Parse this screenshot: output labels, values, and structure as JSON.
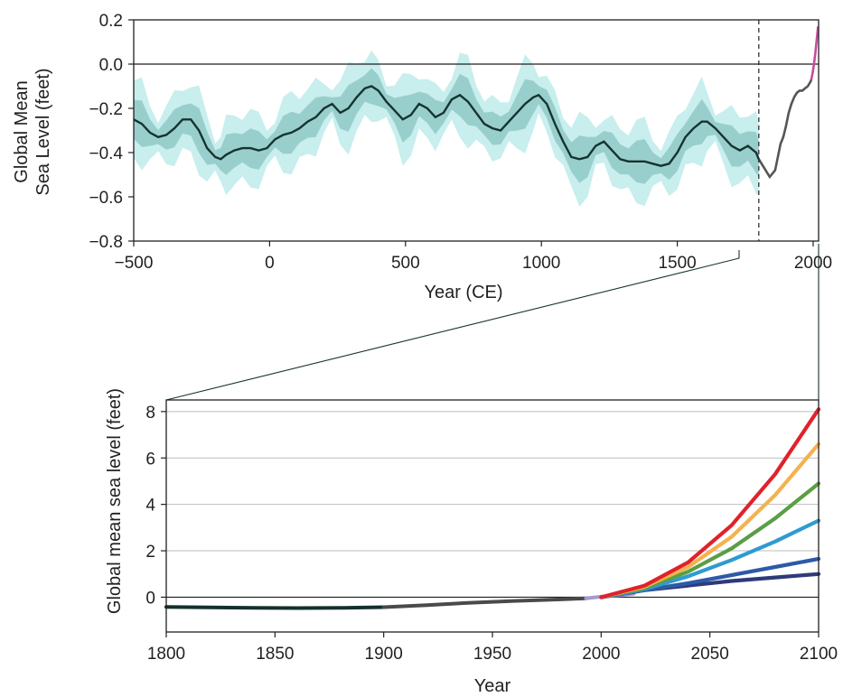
{
  "chart_data": [
    {
      "type": "line",
      "xlabel": "Year (CE)",
      "ylabel_lines": [
        "Global Mean",
        "Sea Level (feet)"
      ],
      "xlim": [
        -500,
        2020
      ],
      "ylim": [
        -0.8,
        0.2
      ],
      "xticks": [
        -500,
        0,
        500,
        1000,
        1500,
        2000
      ],
      "xtick_labels": [
        "−500",
        "0",
        "500",
        "1000",
        "1500",
        "2000"
      ],
      "yticks": [
        -0.8,
        -0.6,
        -0.4,
        -0.2,
        0.0,
        0.2
      ],
      "ytick_labels": [
        "−0.8",
        "−0.6",
        "−0.4",
        "−0.2",
        "0.0",
        "0.2"
      ],
      "grid": false,
      "zero_line": true,
      "marker_line_year": 1800,
      "colors": {
        "mean": "#163330",
        "band_inner": "#8fc9c6",
        "band_outer": "#c8eeee",
        "tide_gauge": "#555555",
        "satellite": "#c44d9e"
      },
      "series": [
        {
          "x": [
            -500,
            -470,
            -440,
            -410,
            -380,
            -350,
            -320,
            -290,
            -260,
            -230,
            -200,
            -180,
            -160,
            -130,
            -100,
            -70,
            -40,
            -10,
            20,
            50,
            80,
            110,
            140,
            170,
            200,
            230,
            260,
            290,
            320,
            350,
            375,
            400,
            430,
            460,
            490,
            520,
            550,
            580,
            610,
            640,
            670,
            700,
            730,
            760,
            790,
            820,
            850,
            880,
            910,
            940,
            970,
            990,
            1020,
            1050,
            1080,
            1110,
            1140,
            1170,
            1200,
            1230,
            1260,
            1290,
            1320,
            1350,
            1380,
            1410,
            1440,
            1470,
            1500,
            1530,
            1560,
            1590,
            1610,
            1640,
            1670,
            1700,
            1730,
            1760,
            1790,
            1800
          ],
          "y": [
            -0.25,
            -0.27,
            -0.31,
            -0.33,
            -0.32,
            -0.29,
            -0.25,
            -0.25,
            -0.3,
            -0.38,
            -0.42,
            -0.43,
            -0.41,
            -0.39,
            -0.38,
            -0.38,
            -0.39,
            -0.38,
            -0.34,
            -0.32,
            -0.31,
            -0.29,
            -0.26,
            -0.24,
            -0.2,
            -0.18,
            -0.22,
            -0.2,
            -0.15,
            -0.11,
            -0.1,
            -0.12,
            -0.17,
            -0.21,
            -0.25,
            -0.23,
            -0.18,
            -0.2,
            -0.24,
            -0.22,
            -0.16,
            -0.14,
            -0.17,
            -0.22,
            -0.27,
            -0.29,
            -0.3,
            -0.26,
            -0.22,
            -0.18,
            -0.15,
            -0.14,
            -0.18,
            -0.27,
            -0.35,
            -0.42,
            -0.43,
            -0.42,
            -0.37,
            -0.35,
            -0.39,
            -0.43,
            -0.44,
            -0.44,
            -0.44,
            -0.45,
            -0.46,
            -0.45,
            -0.4,
            -0.33,
            -0.29,
            -0.26,
            -0.26,
            -0.29,
            -0.33,
            -0.37,
            -0.39,
            -0.37,
            -0.4,
            -0.43
          ]
        },
        {
          "x": [
            1800,
            1820,
            1840,
            1860,
            1880,
            1890,
            1900,
            1910,
            1920,
            1930,
            1940,
            1950,
            1960,
            1970,
            1980,
            1990,
            1993
          ],
          "y": [
            -0.43,
            -0.47,
            -0.51,
            -0.48,
            -0.36,
            -0.33,
            -0.28,
            -0.22,
            -0.18,
            -0.15,
            -0.13,
            -0.12,
            -0.12,
            -0.11,
            -0.1,
            -0.08,
            -0.07
          ]
        },
        {
          "x": [
            1993,
            1998,
            2003,
            2008,
            2013,
            2018
          ],
          "y": [
            -0.07,
            -0.04,
            0.0,
            0.05,
            0.11,
            0.17
          ]
        }
      ]
    },
    {
      "type": "line",
      "xlabel": "Year",
      "ylabel": "Global mean sea level (feet)",
      "xlim": [
        1800,
        2100
      ],
      "ylim": [
        -1.5,
        8.5
      ],
      "xticks": [
        1800,
        1850,
        1900,
        1950,
        2000,
        2050,
        2100
      ],
      "yticks": [
        0,
        2,
        4,
        6,
        8
      ],
      "grid": true,
      "zero_line": true,
      "series": [
        {
          "color": "#13302e",
          "x": [
            1800,
            1820,
            1840,
            1860,
            1880,
            1900
          ],
          "y": [
            -0.42,
            -0.44,
            -0.46,
            -0.47,
            -0.46,
            -0.43
          ]
        },
        {
          "color": "#4a4a4a",
          "x": [
            1900,
            1920,
            1940,
            1960,
            1980,
            1993
          ],
          "y": [
            -0.43,
            -0.34,
            -0.24,
            -0.16,
            -0.1,
            -0.05
          ]
        },
        {
          "color": "#a898cf",
          "x": [
            1993,
            2000,
            2008,
            2015
          ],
          "y": [
            -0.05,
            0.02,
            0.08,
            0.15
          ]
        },
        {
          "color": "#2e3a7a",
          "x": [
            2000,
            2020,
            2040,
            2060,
            2080,
            2100
          ],
          "y": [
            0.0,
            0.3,
            0.5,
            0.7,
            0.85,
            1.0
          ]
        },
        {
          "color": "#2d5aa8",
          "x": [
            2000,
            2020,
            2040,
            2060,
            2080,
            2100
          ],
          "y": [
            0.0,
            0.3,
            0.6,
            0.95,
            1.3,
            1.65
          ]
        },
        {
          "color": "#2e9bd1",
          "x": [
            2000,
            2020,
            2040,
            2060,
            2080,
            2100
          ],
          "y": [
            0.0,
            0.35,
            0.9,
            1.6,
            2.4,
            3.3
          ]
        },
        {
          "color": "#5a9e45",
          "x": [
            2000,
            2020,
            2040,
            2060,
            2080,
            2100
          ],
          "y": [
            0.0,
            0.4,
            1.1,
            2.1,
            3.4,
            4.9
          ]
        },
        {
          "color": "#f4b24e",
          "x": [
            2000,
            2020,
            2040,
            2060,
            2080,
            2100
          ],
          "y": [
            0.0,
            0.45,
            1.3,
            2.6,
            4.4,
            6.6
          ]
        },
        {
          "color": "#e0222a",
          "x": [
            2000,
            2020,
            2040,
            2060,
            2080,
            2100
          ],
          "y": [
            0.0,
            0.5,
            1.5,
            3.1,
            5.3,
            8.1
          ]
        }
      ]
    }
  ]
}
